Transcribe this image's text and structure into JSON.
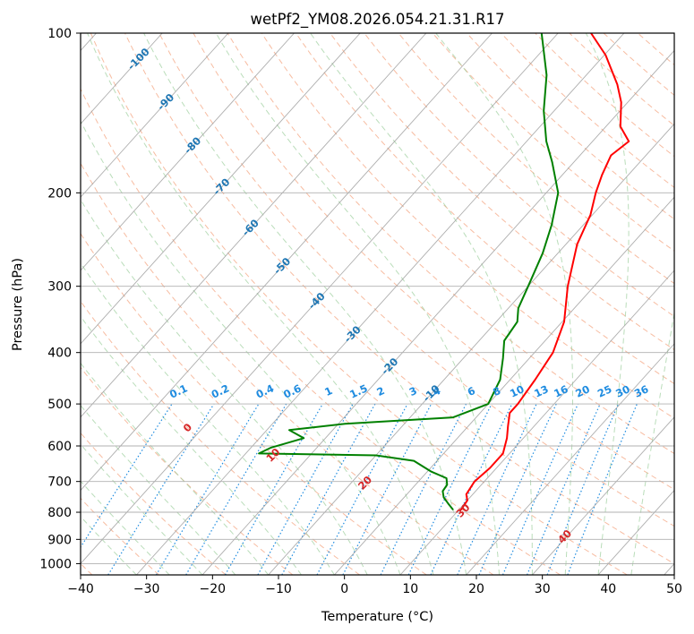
{
  "chart_data": {
    "type": "line",
    "title": "wetPf2_YM08.2026.054.21.31.R17",
    "xlabel": "Temperature (°C)",
    "ylabel": "Pressure (hPa)",
    "xlim": [
      -40,
      50
    ],
    "ylim": [
      1050,
      100
    ],
    "y_scale": "log",
    "grid": true,
    "skew": true,
    "x_ticks": [
      -40,
      -30,
      -20,
      -10,
      0,
      10,
      20,
      30,
      40,
      50
    ],
    "y_ticks": [
      1000,
      900,
      800,
      700,
      600,
      500,
      400,
      300,
      200,
      100
    ],
    "series": [
      {
        "color": "#ff0000",
        "points": [
          [
            10.3,
            790
          ],
          [
            10.0,
            760
          ],
          [
            9.0,
            740
          ],
          [
            8.5,
            700
          ],
          [
            9.0,
            660
          ],
          [
            9.0,
            620
          ],
          [
            7.5,
            580
          ],
          [
            6.0,
            550
          ],
          [
            4.5,
            520
          ],
          [
            4.5,
            500
          ],
          [
            3.8,
            450
          ],
          [
            2.8,
            400
          ],
          [
            0.3,
            350
          ],
          [
            -4.0,
            300
          ],
          [
            -8.3,
            250
          ],
          [
            -10.3,
            220
          ],
          [
            -12.5,
            200
          ],
          [
            -14.0,
            185
          ],
          [
            -15.3,
            170
          ],
          [
            -14.5,
            160
          ],
          [
            -17.8,
            150
          ],
          [
            -21.0,
            135
          ],
          [
            -24.0,
            125
          ],
          [
            -29.8,
            110
          ],
          [
            -35.0,
            100
          ]
        ]
      },
      {
        "color": "#008000",
        "points": [
          [
            9.0,
            790
          ],
          [
            7.5,
            770
          ],
          [
            6.0,
            750
          ],
          [
            5.0,
            730
          ],
          [
            4.8,
            710
          ],
          [
            3.8,
            690
          ],
          [
            0.5,
            670
          ],
          [
            -3.5,
            640
          ],
          [
            -10.0,
            625
          ],
          [
            -28.0,
            620
          ],
          [
            -27.0,
            605
          ],
          [
            -23.3,
            580
          ],
          [
            -26.6,
            560
          ],
          [
            -19.0,
            545
          ],
          [
            -3.5,
            530
          ],
          [
            0.0,
            500
          ],
          [
            -1.5,
            450
          ],
          [
            -4.0,
            410
          ],
          [
            -6.2,
            380
          ],
          [
            -6.8,
            350
          ],
          [
            -8.5,
            330
          ],
          [
            -10.0,
            300
          ],
          [
            -12.3,
            260
          ],
          [
            -14.8,
            230
          ],
          [
            -18.2,
            200
          ],
          [
            -23.3,
            175
          ],
          [
            -27.0,
            160
          ],
          [
            -31.6,
            140
          ],
          [
            -36.0,
            120
          ],
          [
            -42.5,
            100
          ]
        ]
      }
    ],
    "dry_adiabat_labels": [
      "0",
      "10",
      "20",
      "30",
      "40"
    ],
    "moist_adiabat_labels": [
      "-100",
      "-90",
      "-80",
      "-70",
      "-60",
      "-50",
      "-40",
      "-30",
      "-20",
      "-10"
    ],
    "mixing_ratio_labels": [
      "0.1",
      "0.2",
      "0.4",
      "0.6",
      "1",
      "1.5",
      "2",
      "3",
      "4",
      "6",
      "8",
      "10",
      "13",
      "16",
      "20",
      "25",
      "30",
      "36"
    ],
    "colors": {
      "temperature": "#ff0000",
      "dewpoint": "#008000",
      "dry_adiabats": "#f4a582",
      "moist_adiabats": "#9ccf9c",
      "mixing_ratio": "#1f8ce0",
      "isotherms": "#9a9a9a",
      "isobars": "#b0b0b0"
    }
  }
}
